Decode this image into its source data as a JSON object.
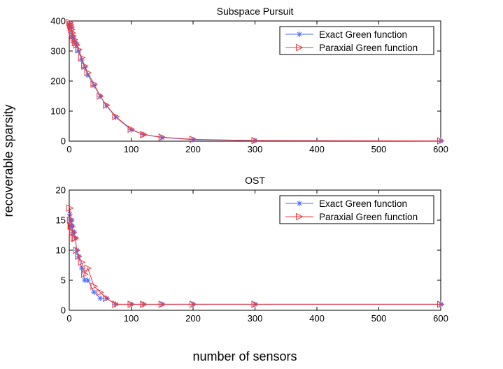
{
  "figure": {
    "ylabel": "recoverable sparsity",
    "xlabel": "number of sensors"
  },
  "chart_data": [
    {
      "type": "line",
      "title": "Subspace Pursuit",
      "xlabel": "number of sensors",
      "ylabel": "recoverable sparsity",
      "xlim": [
        0,
        600
      ],
      "ylim": [
        0,
        400
      ],
      "xticks": [
        0,
        100,
        200,
        300,
        400,
        500,
        600
      ],
      "yticks": [
        0,
        100,
        200,
        300,
        400
      ],
      "grid": false,
      "legend_position": "top-right",
      "series": [
        {
          "name": "Exact Green function",
          "color": "#4a6cf7",
          "marker": "asterisk",
          "x": [
            1,
            2,
            3,
            4,
            5,
            6,
            8,
            10,
            12,
            15,
            20,
            25,
            30,
            40,
            50,
            60,
            75,
            100,
            120,
            150,
            200,
            300,
            600
          ],
          "y": [
            392,
            385,
            378,
            365,
            352,
            345,
            335,
            325,
            318,
            300,
            270,
            245,
            220,
            185,
            150,
            118,
            80,
            38,
            22,
            12,
            5,
            2,
            1
          ]
        },
        {
          "name": "Paraxial Green function",
          "color": "#f0383c",
          "marker": "triangle-right",
          "x": [
            1,
            2,
            3,
            4,
            5,
            6,
            8,
            10,
            12,
            15,
            20,
            25,
            30,
            40,
            50,
            60,
            75,
            100,
            120,
            150,
            200,
            300,
            600
          ],
          "y": [
            395,
            388,
            380,
            372,
            360,
            350,
            338,
            328,
            320,
            305,
            278,
            250,
            228,
            190,
            150,
            120,
            82,
            40,
            22,
            13,
            6,
            2,
            1
          ]
        }
      ]
    },
    {
      "type": "line",
      "title": "OST",
      "xlabel": "number of sensors",
      "ylabel": "recoverable sparsity",
      "xlim": [
        0,
        600
      ],
      "ylim": [
        0,
        20
      ],
      "xticks": [
        0,
        100,
        200,
        300,
        400,
        500,
        600
      ],
      "yticks": [
        0,
        5,
        10,
        15,
        20
      ],
      "grid": false,
      "legend_position": "top-right",
      "series": [
        {
          "name": "Exact Green function",
          "color": "#4a6cf7",
          "marker": "asterisk",
          "x": [
            1,
            2,
            3,
            4,
            5,
            6,
            8,
            10,
            12,
            15,
            20,
            25,
            30,
            40,
            50,
            60,
            75,
            100,
            120,
            150,
            200,
            300,
            600
          ],
          "y": [
            16,
            15,
            14,
            15,
            14,
            13,
            13,
            12,
            10,
            9,
            7,
            5,
            5,
            3,
            2,
            2,
            1,
            1,
            1,
            1,
            1,
            1,
            1
          ]
        },
        {
          "name": "Paraxial Green function",
          "color": "#f0383c",
          "marker": "triangle-right",
          "x": [
            1,
            2,
            3,
            4,
            5,
            6,
            8,
            10,
            12,
            15,
            20,
            25,
            30,
            40,
            50,
            60,
            75,
            100,
            120,
            150,
            200,
            300,
            600
          ],
          "y": [
            17,
            15,
            14,
            14,
            13,
            13,
            12,
            12,
            10,
            9,
            8,
            6,
            7,
            4,
            3,
            2,
            1,
            1,
            1,
            1,
            1,
            1,
            1
          ]
        }
      ]
    }
  ]
}
